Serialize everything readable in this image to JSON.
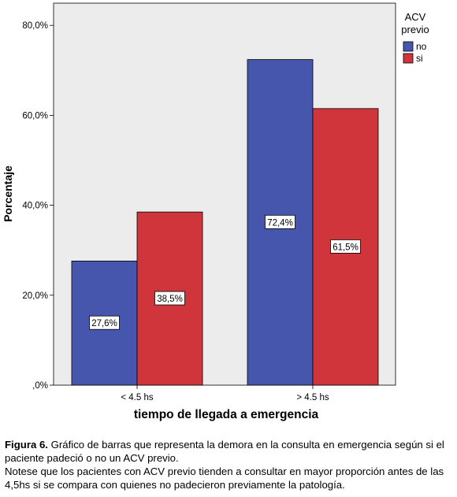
{
  "chart_data": {
    "type": "bar",
    "categories": [
      "< 4.5 hs",
      "> 4.5 hs"
    ],
    "series": [
      {
        "name": "no",
        "values": [
          27.6,
          72.4
        ],
        "labels": [
          "27,6%",
          "72,4%"
        ],
        "color": "#4556ac"
      },
      {
        "name": "si",
        "values": [
          38.5,
          61.5
        ],
        "labels": [
          "38,5%",
          "61,5%"
        ],
        "color": "#d0353b"
      }
    ],
    "xlabel": "tiempo de llegada a emergencia",
    "ylabel": "Porcentaje",
    "ylim": [
      0,
      80
    ],
    "yticks": [
      0,
      20,
      40,
      60,
      80
    ],
    "ytick_labels": [
      ",0%",
      "20,0%",
      "40,0%",
      "60,0%",
      "80,0%"
    ],
    "legend": {
      "title_line1": "ACV",
      "title_line2": "previo",
      "position": "top-right"
    },
    "plot_background": "#ececec",
    "grid": false
  },
  "caption": {
    "lead": "Figura 6.",
    "line1": " Gráfico de barras que representa la demora en la consulta en emergencia según si el paciente padeció  o no un ACV previo.",
    "line2": "Notese que los pacientes con ACV previo tienden a consultar en mayor proporción antes de las 4,5hs si se compara con quienes no padecieron previamente la patología."
  }
}
